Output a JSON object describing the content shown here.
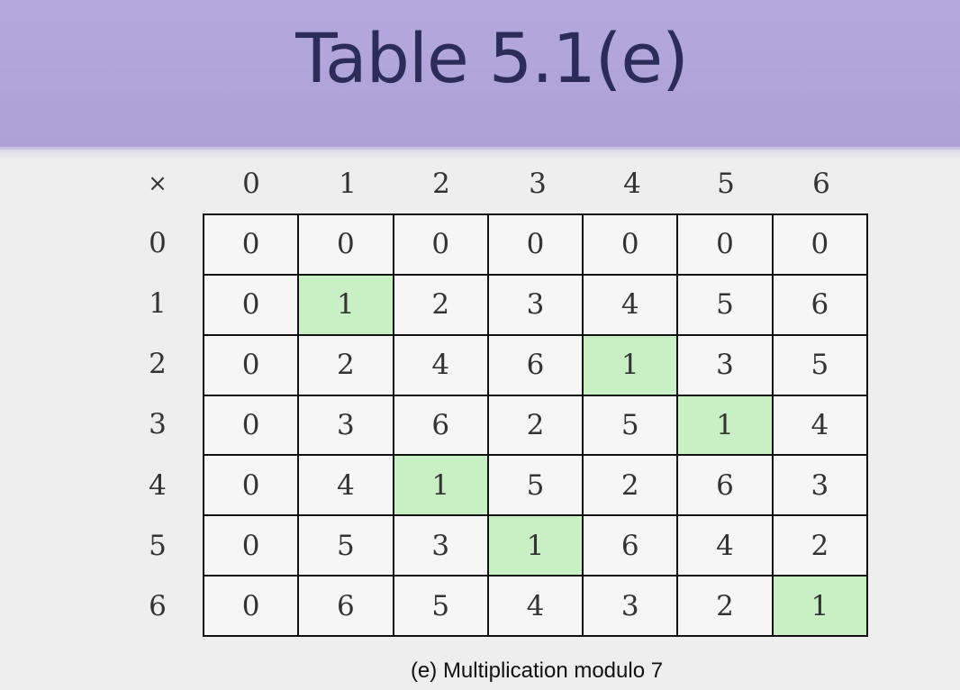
{
  "slide": {
    "title": "Table 5.1(e)",
    "caption": "(e) Multiplication modulo 7"
  },
  "table": {
    "operator": "×",
    "column_headers": [
      "0",
      "1",
      "2",
      "3",
      "4",
      "5",
      "6"
    ],
    "row_headers": [
      "0",
      "1",
      "2",
      "3",
      "4",
      "5",
      "6"
    ],
    "rows": [
      [
        "0",
        "0",
        "0",
        "0",
        "0",
        "0",
        "0"
      ],
      [
        "0",
        "1",
        "2",
        "3",
        "4",
        "5",
        "6"
      ],
      [
        "0",
        "2",
        "4",
        "6",
        "1",
        "3",
        "5"
      ],
      [
        "0",
        "3",
        "6",
        "2",
        "5",
        "1",
        "4"
      ],
      [
        "0",
        "4",
        "1",
        "5",
        "2",
        "6",
        "3"
      ],
      [
        "0",
        "5",
        "3",
        "1",
        "6",
        "4",
        "2"
      ],
      [
        "0",
        "6",
        "5",
        "4",
        "3",
        "2",
        "1"
      ]
    ],
    "highlight_color": "#c9efc4",
    "highlighted_cells": [
      [
        1,
        1
      ],
      [
        2,
        4
      ],
      [
        3,
        5
      ],
      [
        4,
        2
      ],
      [
        5,
        3
      ],
      [
        6,
        6
      ]
    ]
  },
  "colors": {
    "header_band": "#b0a4da",
    "title_text": "#2b2c57",
    "background": "#eeeeee"
  }
}
